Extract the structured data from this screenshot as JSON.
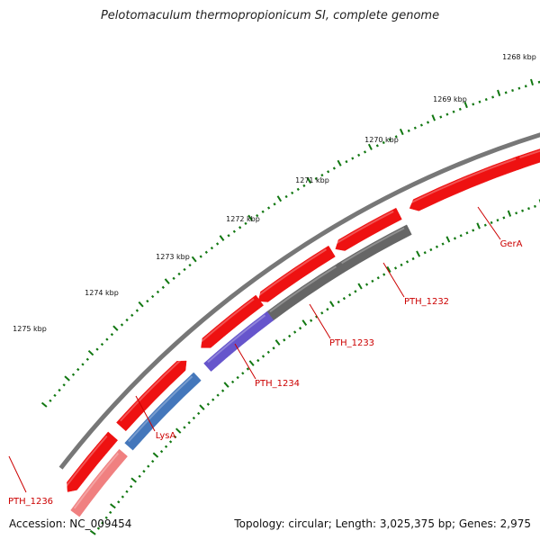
{
  "title": "Pelotomaculum thermopropionicum SI, complete genome",
  "accession": "Accession: NC_009454",
  "topology": "Topology: circular; Length: 3,025,375 bp; Genes: 2,975",
  "kbp_labels": [
    "1268 kbp",
    "1269 kbp",
    "1270 kbp",
    "1271 kbp",
    "1272 kbp",
    "1273 kbp",
    "1274 kbp",
    "1275 kbp"
  ],
  "gene_labels": [
    "GerA",
    "PTH_1232",
    "PTH_1233",
    "PTH_1234",
    "LysA",
    "PTH_1236"
  ],
  "colors": {
    "backbone": "#777777",
    "cds": "#ee1111",
    "label": "#cc0000",
    "tick": "#117711",
    "blue": "#4477bb",
    "purple": "#6655cc",
    "gray": "#666666",
    "pink": "#f08080"
  }
}
